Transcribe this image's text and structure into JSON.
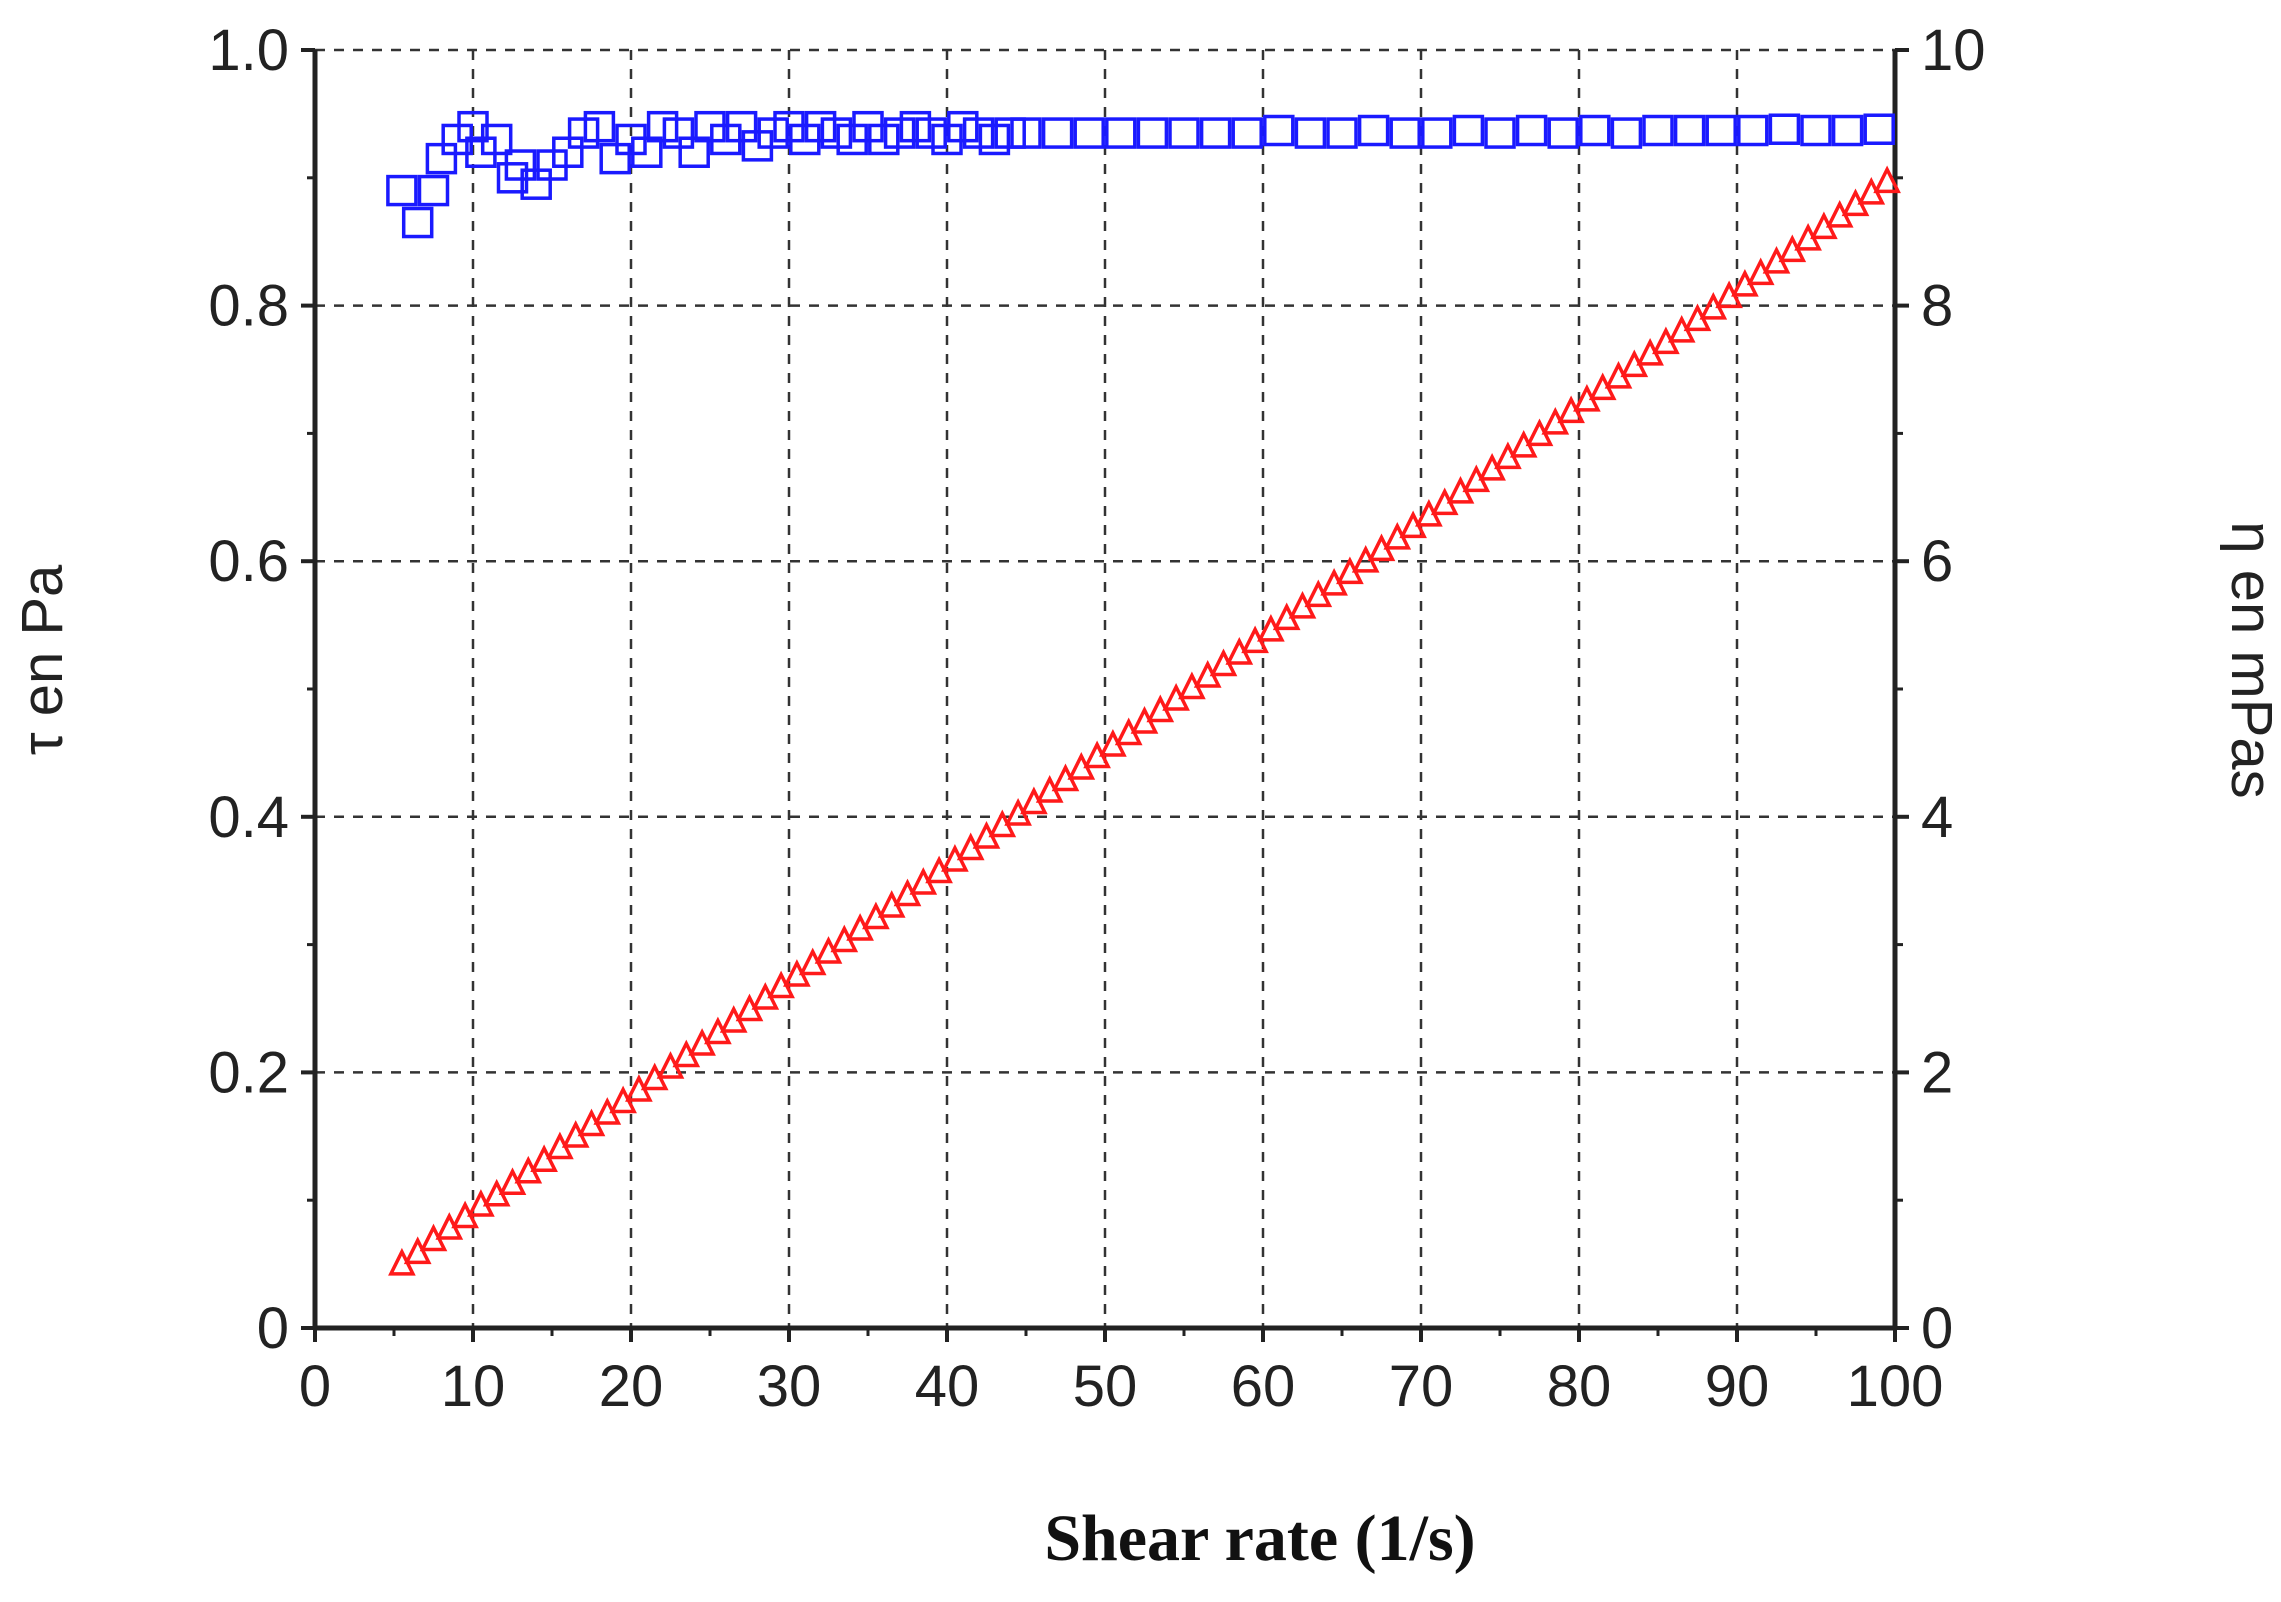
{
  "chart_data": {
    "type": "scatter",
    "title": "",
    "xlabel": "Shear rate (1/s)",
    "ylabel_left": "τ en Pa",
    "ylabel_right": "η en mPas",
    "xlim": [
      0,
      100
    ],
    "ylim_left": [
      0,
      1.0
    ],
    "ylim_right": [
      0,
      10
    ],
    "x_ticks": [
      "0",
      "10",
      "20",
      "30",
      "40",
      "50",
      "60",
      "70",
      "80",
      "90",
      "100"
    ],
    "y_left_ticks": [
      "0",
      "0.2",
      "0.4",
      "0.6",
      "0.8",
      "1.0"
    ],
    "y_right_ticks": [
      "0",
      "2",
      "4",
      "6",
      "8",
      "10"
    ],
    "grid": true,
    "series": [
      {
        "axis": "right",
        "marker": "square",
        "color": "#1a1aff",
        "x": [
          5.5,
          6.5,
          7.5,
          8.0,
          9.0,
          10.0,
          10.5,
          11.5,
          12.5,
          13.0,
          14.0,
          15.0,
          16.0,
          17.0,
          18.0,
          19.0,
          20.0,
          21.0,
          22.0,
          23.0,
          24.0,
          25.0,
          26.0,
          27.0,
          28.0,
          29.0,
          30.0,
          31.0,
          32.0,
          33.0,
          34.0,
          35.0,
          36.0,
          37.0,
          38.0,
          39.0,
          40.0,
          41.0,
          42.0,
          43.0,
          44.0,
          45.0,
          47.0,
          49.0,
          51.0,
          53.0,
          55.0,
          57.0,
          59.0,
          61.0,
          63.0,
          65.0,
          67.0,
          69.0,
          71.0,
          73.0,
          75.0,
          77.0,
          79.0,
          81.0,
          83.0,
          85.0,
          87.0,
          89.0,
          91.0,
          93.0,
          95.0,
          97.0,
          99.0
        ],
        "y": [
          8.9,
          8.65,
          8.9,
          9.15,
          9.3,
          9.4,
          9.2,
          9.3,
          9.0,
          9.1,
          8.95,
          9.1,
          9.2,
          9.35,
          9.4,
          9.15,
          9.3,
          9.2,
          9.4,
          9.35,
          9.2,
          9.4,
          9.3,
          9.4,
          9.25,
          9.35,
          9.4,
          9.3,
          9.4,
          9.35,
          9.3,
          9.4,
          9.3,
          9.35,
          9.4,
          9.35,
          9.3,
          9.4,
          9.35,
          9.3,
          9.35,
          9.35,
          9.35,
          9.35,
          9.35,
          9.35,
          9.35,
          9.35,
          9.35,
          9.37,
          9.35,
          9.35,
          9.37,
          9.35,
          9.35,
          9.37,
          9.35,
          9.37,
          9.35,
          9.37,
          9.35,
          9.37,
          9.37,
          9.37,
          9.37,
          9.38,
          9.37,
          9.37,
          9.38
        ]
      },
      {
        "axis": "left",
        "marker": "triangle",
        "color": "#ff1a1a",
        "x": [
          5.5,
          6.5,
          7.5,
          8.5,
          9.5,
          10.5,
          11.5,
          12.5,
          13.5,
          14.5,
          15.5,
          16.5,
          17.5,
          18.5,
          19.5,
          20.5,
          21.5,
          22.5,
          23.5,
          24.5,
          25.5,
          26.5,
          27.5,
          28.5,
          29.5,
          30.5,
          31.5,
          32.5,
          33.5,
          34.5,
          35.5,
          36.5,
          37.5,
          38.5,
          39.5,
          40.5,
          41.5,
          42.5,
          43.5,
          44.5,
          45.5,
          46.5,
          47.5,
          48.5,
          49.5,
          50.5,
          51.5,
          52.5,
          53.5,
          54.5,
          55.5,
          56.5,
          57.5,
          58.5,
          59.5,
          60.5,
          61.5,
          62.5,
          63.5,
          64.5,
          65.5,
          66.5,
          67.5,
          68.5,
          69.5,
          70.5,
          71.5,
          72.5,
          73.5,
          74.5,
          75.5,
          76.5,
          77.5,
          78.5,
          79.5,
          80.5,
          81.5,
          82.5,
          83.5,
          84.5,
          85.5,
          86.5,
          87.5,
          88.5,
          89.5,
          90.5,
          91.5,
          92.5,
          93.5,
          94.5,
          95.5,
          96.5,
          97.5,
          98.5,
          99.5
        ],
        "y": [
          0.051,
          0.06,
          0.07,
          0.079,
          0.088,
          0.097,
          0.105,
          0.114,
          0.123,
          0.132,
          0.142,
          0.151,
          0.16,
          0.169,
          0.178,
          0.187,
          0.196,
          0.205,
          0.214,
          0.223,
          0.232,
          0.241,
          0.25,
          0.259,
          0.268,
          0.277,
          0.286,
          0.295,
          0.304,
          0.313,
          0.322,
          0.331,
          0.34,
          0.349,
          0.358,
          0.367,
          0.376,
          0.385,
          0.394,
          0.403,
          0.412,
          0.421,
          0.43,
          0.439,
          0.448,
          0.457,
          0.466,
          0.475,
          0.484,
          0.493,
          0.502,
          0.511,
          0.52,
          0.529,
          0.538,
          0.547,
          0.556,
          0.565,
          0.574,
          0.583,
          0.592,
          0.601,
          0.61,
          0.619,
          0.628,
          0.637,
          0.646,
          0.655,
          0.664,
          0.673,
          0.682,
          0.691,
          0.7,
          0.709,
          0.718,
          0.727,
          0.736,
          0.745,
          0.754,
          0.763,
          0.772,
          0.781,
          0.79,
          0.799,
          0.808,
          0.817,
          0.826,
          0.835,
          0.844,
          0.853,
          0.862,
          0.871,
          0.88,
          0.889,
          0.898
        ]
      }
    ]
  }
}
